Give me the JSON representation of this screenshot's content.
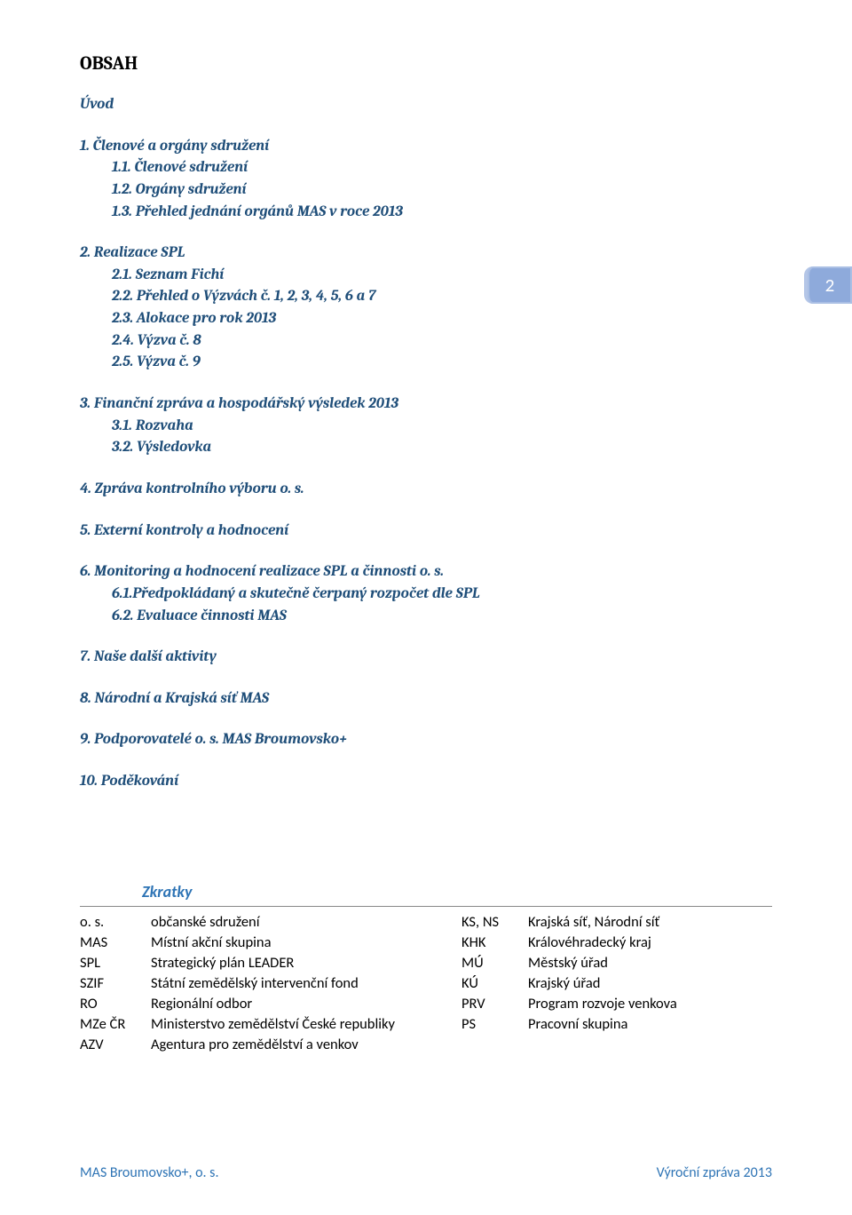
{
  "colors": {
    "heading_link": "#1f4e79",
    "accent_blue": "#2e74b5",
    "badge_bg": "#8eaadb",
    "badge_border": "#b4c6e7",
    "text": "#000000",
    "background": "#ffffff"
  },
  "title": "OBSAH",
  "page_badge": "2",
  "toc": {
    "intro": "Úvod",
    "s1": "1.  Členové a orgány sdružení",
    "s1_1": "1.1. Členové sdružení",
    "s1_2": "1.2. Orgány sdružení",
    "s1_3": "1.3. Přehled jednání orgánů MAS v roce 2013",
    "s2": "2.  Realizace SPL",
    "s2_1": "2.1. Seznam Fichí",
    "s2_2": "2.2. Přehled o Výzvách č. 1, 2, 3, 4, 5, 6 a 7",
    "s2_3": "2.3. Alokace pro rok 2013",
    "s2_4": "2.4. Výzva č. 8",
    "s2_5": "2.5. Výzva č. 9",
    "s3": "3.  Finanční zpráva a hospodářský výsledek 2013",
    "s3_1": "3.1. Rozvaha",
    "s3_2": "3.2. Výsledovka",
    "s4": "4.  Zpráva kontrolního výboru o. s.",
    "s5": "5.  Externí kontroly a hodnocení",
    "s6": "6.  Monitoring a hodnocení realizace SPL a činnosti o. s.",
    "s6_1": "6.1.Předpokládaný a skutečně čerpaný rozpočet dle SPL",
    "s6_2": "6.2. Evaluace činnosti MAS",
    "s7": "7.  Naše další aktivity",
    "s8": "8.  Národní a Krajská síť MAS",
    "s9": "9.  Podporovatelé o. s. MAS Broumovsko+",
    "s10": "10. Poděkování"
  },
  "zkratky": {
    "title": "Zkratky",
    "rows": [
      {
        "la": "o. s.",
        "ld": "občanské sdružení",
        "ra": "KS, NS",
        "rd": "Krajská síť, Národní síť"
      },
      {
        "la": "MAS",
        "ld": "Místní akční skupina",
        "ra": "KHK",
        "rd": "Královéhradecký kraj"
      },
      {
        "la": "SPL",
        "ld": "Strategický plán LEADER",
        "ra": "MÚ",
        "rd": "Městský úřad"
      },
      {
        "la": "SZIF",
        "ld": "Státní zemědělský intervenční fond",
        "ra": "KÚ",
        "rd": "Krajský úřad"
      },
      {
        "la": "RO",
        "ld": "Regionální odbor",
        "ra": "PRV",
        "rd": "Program rozvoje venkova"
      },
      {
        "la": "MZe ČR",
        "ld": "Ministerstvo zemědělství České republiky",
        "ra": "PS",
        "rd": "Pracovní skupina"
      },
      {
        "la": "AZV",
        "ld": "Agentura pro zemědělství a venkov",
        "ra": "",
        "rd": ""
      }
    ]
  },
  "footer": {
    "left": "MAS Broumovsko+, o. s.",
    "right": "Výroční zpráva 2013"
  }
}
